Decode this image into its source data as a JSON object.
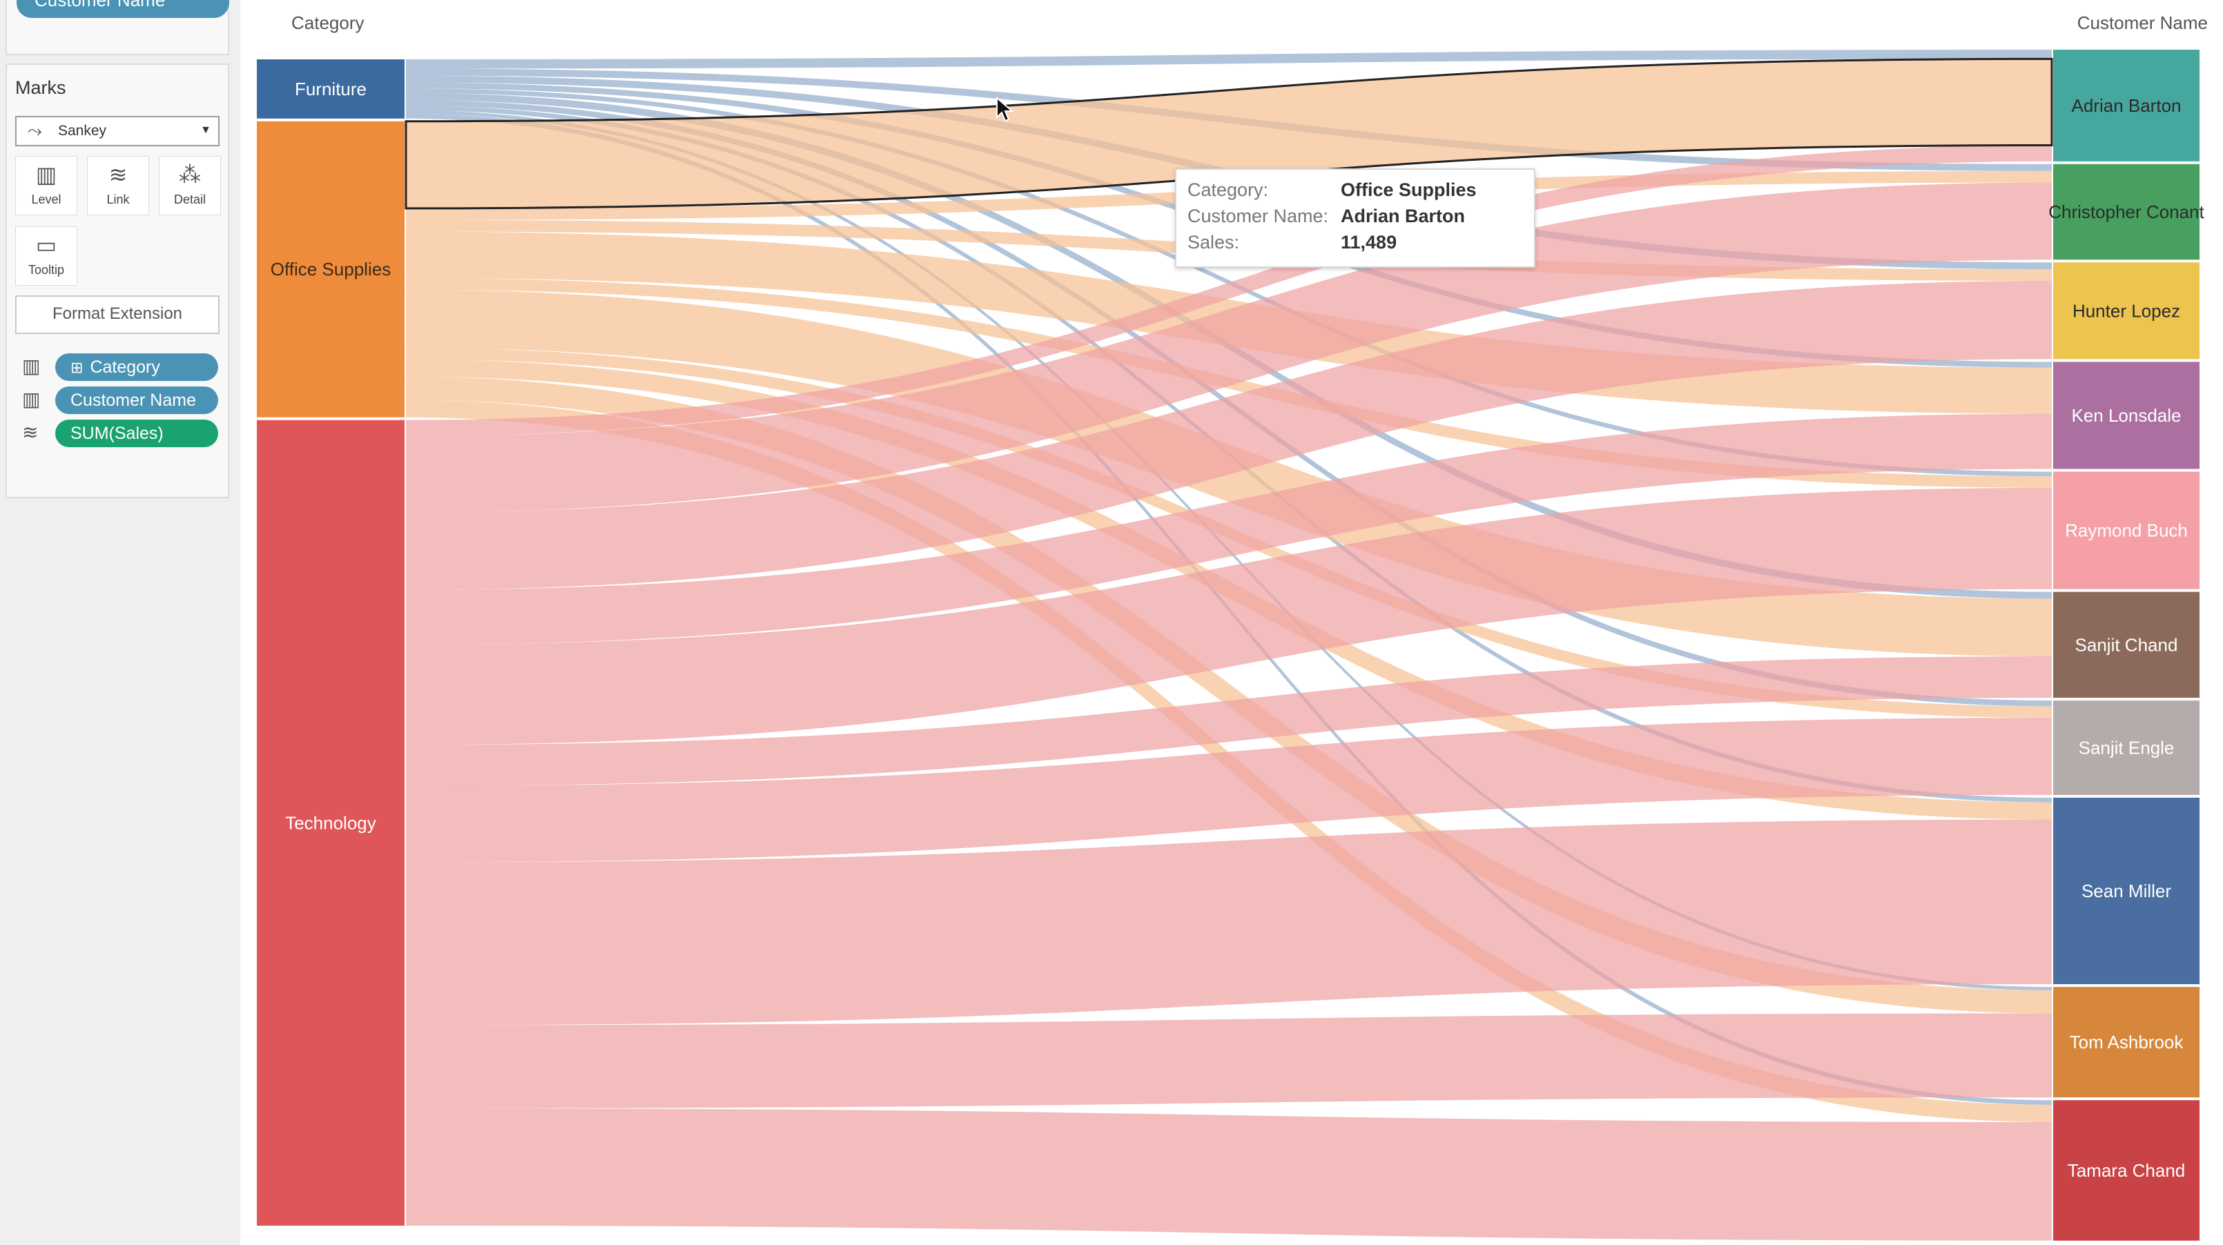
{
  "top_pill": {
    "label": "Customer Name",
    "color": "#4a93b5"
  },
  "marks": {
    "title": "Marks",
    "mark_type": {
      "label": "Sankey",
      "icon": "sankey-icon"
    },
    "buttons": [
      {
        "label": "Level",
        "icon": "level-icon"
      },
      {
        "label": "Link",
        "icon": "link-icon"
      },
      {
        "label": "Detail",
        "icon": "detail-icon"
      },
      {
        "label": "Tooltip",
        "icon": "tooltip-icon"
      }
    ],
    "format_button": "Format Extension",
    "fields": [
      {
        "label": "Category",
        "icon": "level-icon",
        "color": "#4a93b5"
      },
      {
        "label": "Customer Name",
        "icon": "level-icon",
        "color": "#4a93b5"
      },
      {
        "label": "SUM(Sales)",
        "icon": "link-icon",
        "color": "#1aa36f"
      }
    ]
  },
  "viz": {
    "left_header": "Category",
    "right_header": "Customer Name"
  },
  "tooltip": {
    "rows": [
      {
        "key": "Category:",
        "value": "Office Supplies"
      },
      {
        "key": "Customer Name:",
        "value": "Adrian Barton"
      },
      {
        "key": "Sales:",
        "value": "11,489"
      }
    ]
  },
  "chart_data": {
    "type": "sankey",
    "source_label": "Category",
    "target_label": "Customer Name",
    "sources": [
      {
        "name": "Furniture",
        "color": "#3b6aa0",
        "share": 0.051
      },
      {
        "name": "Office Supplies",
        "color": "#ef8c3b",
        "share": 0.255
      },
      {
        "name": "Technology",
        "color": "#e05558",
        "share": 0.694
      }
    ],
    "targets": [
      {
        "name": "Adrian Barton",
        "color": "#46a79e",
        "share": 0.097
      },
      {
        "name": "Christopher Conant",
        "color": "#47a05f",
        "share": 0.083
      },
      {
        "name": "Hunter Lopez",
        "color": "#ecc44e",
        "share": 0.084
      },
      {
        "name": "Ken Lonsdale",
        "color": "#ab6fa0",
        "share": 0.093
      },
      {
        "name": "Raymond Buch",
        "color": "#f4a0a6",
        "share": 0.102
      },
      {
        "name": "Sanjit Chand",
        "color": "#8c6a5b",
        "share": 0.092
      },
      {
        "name": "Sanjit Engle",
        "color": "#b4acaa",
        "share": 0.082
      },
      {
        "name": "Sean Miller",
        "color": "#4a6ea1",
        "share": 0.162
      },
      {
        "name": "Tom Ashbrook",
        "color": "#d7873b",
        "share": 0.096
      },
      {
        "name": "Tamara Chand",
        "color": "#c84246",
        "share": 0.122
      }
    ],
    "links": [
      {
        "source": "Furniture",
        "target": "Adrian Barton",
        "value": 0.008
      },
      {
        "source": "Furniture",
        "target": "Christopher Conant",
        "value": 0.006
      },
      {
        "source": "Furniture",
        "target": "Hunter Lopez",
        "value": 0.006
      },
      {
        "source": "Furniture",
        "target": "Ken Lonsdale",
        "value": 0.005
      },
      {
        "source": "Furniture",
        "target": "Raymond Buch",
        "value": 0.004
      },
      {
        "source": "Furniture",
        "target": "Sanjit Chand",
        "value": 0.006
      },
      {
        "source": "Furniture",
        "target": "Sanjit Engle",
        "value": 0.005
      },
      {
        "source": "Furniture",
        "target": "Sean Miller",
        "value": 0.004
      },
      {
        "source": "Furniture",
        "target": "Tom Ashbrook",
        "value": 0.003
      },
      {
        "source": "Furniture",
        "target": "Tamara Chand",
        "value": 0.004
      },
      {
        "source": "Office Supplies",
        "target": "Adrian Barton",
        "value": 0.075,
        "highlighted": true
      },
      {
        "source": "Office Supplies",
        "target": "Christopher Conant",
        "value": 0.01
      },
      {
        "source": "Office Supplies",
        "target": "Hunter Lopez",
        "value": 0.01
      },
      {
        "source": "Office Supplies",
        "target": "Ken Lonsdale",
        "value": 0.04
      },
      {
        "source": "Office Supplies",
        "target": "Raymond Buch",
        "value": 0.01
      },
      {
        "source": "Office Supplies",
        "target": "Sanjit Chand",
        "value": 0.05
      },
      {
        "source": "Office Supplies",
        "target": "Sanjit Engle",
        "value": 0.01
      },
      {
        "source": "Office Supplies",
        "target": "Sean Miller",
        "value": 0.015
      },
      {
        "source": "Office Supplies",
        "target": "Tom Ashbrook",
        "value": 0.02
      },
      {
        "source": "Office Supplies",
        "target": "Tamara Chand",
        "value": 0.015
      },
      {
        "source": "Technology",
        "target": "Adrian Barton",
        "value": 0.014
      },
      {
        "source": "Technology",
        "target": "Christopher Conant",
        "value": 0.067
      },
      {
        "source": "Technology",
        "target": "Hunter Lopez",
        "value": 0.068
      },
      {
        "source": "Technology",
        "target": "Ken Lonsdale",
        "value": 0.048
      },
      {
        "source": "Technology",
        "target": "Raymond Buch",
        "value": 0.088
      },
      {
        "source": "Technology",
        "target": "Sanjit Chand",
        "value": 0.036
      },
      {
        "source": "Technology",
        "target": "Sanjit Engle",
        "value": 0.067
      },
      {
        "source": "Technology",
        "target": "Sean Miller",
        "value": 0.143
      },
      {
        "source": "Technology",
        "target": "Tom Ashbrook",
        "value": 0.073
      },
      {
        "source": "Technology",
        "target": "Tamara Chand",
        "value": 0.103
      }
    ]
  }
}
